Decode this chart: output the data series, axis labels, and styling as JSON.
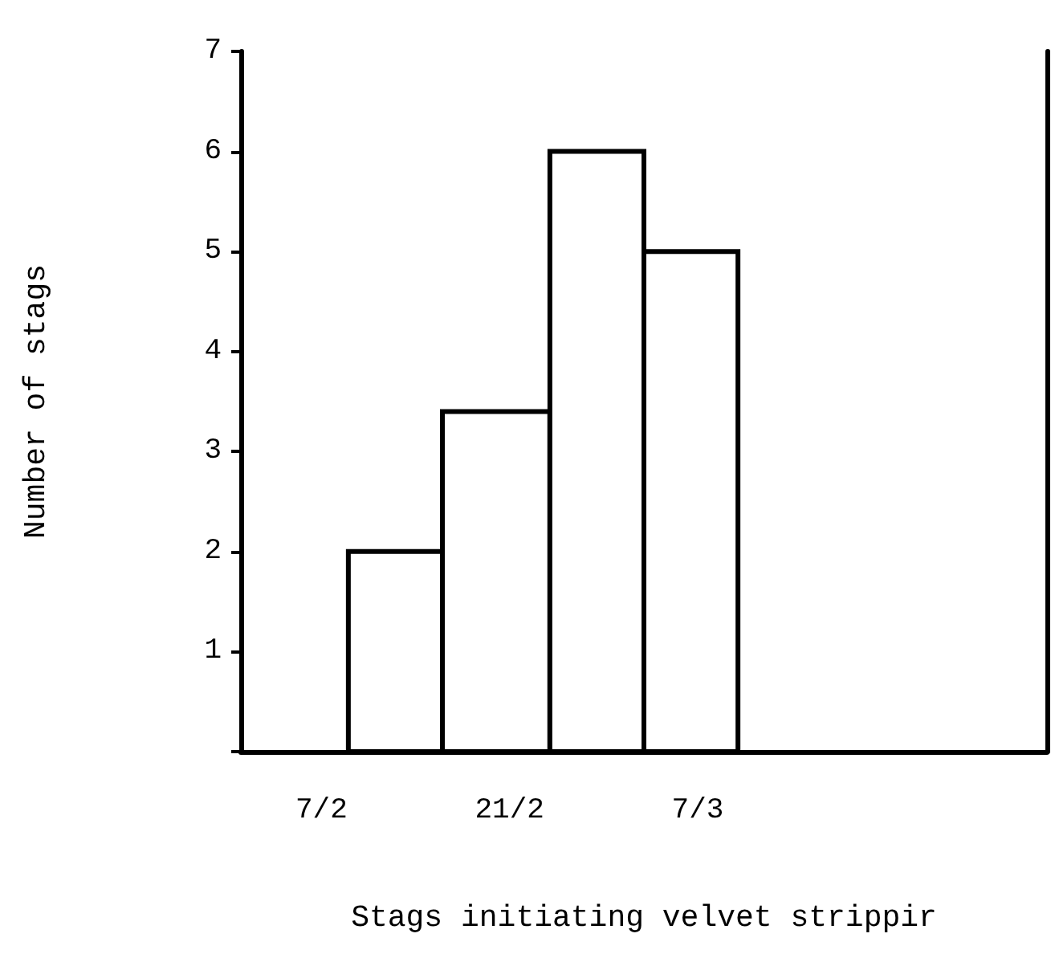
{
  "chart_data": {
    "type": "histogram",
    "xlabel": "Stags initiating velvet strippir",
    "ylabel": "Number of stags",
    "bins": [
      "--02-09",
      "--02-16",
      "--02-24",
      "--03-03",
      "--03-10"
    ],
    "values": [
      2,
      3.4,
      6,
      5
    ],
    "color": "#ffffff",
    "xlim": [
      "--02-01",
      "--04-02"
    ],
    "xticks": [
      {
        "value": "--02-07",
        "label": "7/2"
      },
      {
        "value": "--02-21",
        "label": "21/2"
      },
      {
        "value": "--03-07",
        "label": "7/3"
      }
    ],
    "ylim": [
      0,
      7
    ],
    "yticks": [
      {
        "value": 0,
        "label": null
      },
      1,
      2,
      3,
      4,
      5,
      6,
      7
    ]
  }
}
